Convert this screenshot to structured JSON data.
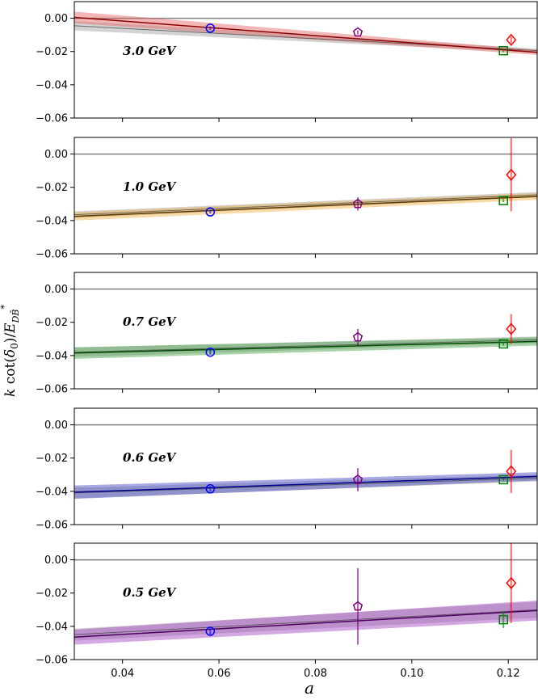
{
  "chart_data": {
    "type": "scatter",
    "xlabel": "a",
    "ylabel": "k cot(δ0)/E_DB̄*",
    "ylabel_parts": {
      "k": "k",
      "cot": " cot(",
      "delta": "δ",
      "delta_sub": "0",
      "close": ")/",
      "E": "E",
      "sub": "DB̄",
      "sup": "*"
    },
    "xlim": [
      0.03,
      0.126
    ],
    "ylim": [
      -0.06,
      0.01
    ],
    "x_ticks": [
      0.04,
      0.06,
      0.08,
      0.1,
      0.12
    ],
    "x_tick_labels": [
      "0.04",
      "0.06",
      "0.08",
      "0.10",
      "0.12"
    ],
    "y_ticks": [
      0.0,
      -0.02,
      -0.04,
      -0.06
    ],
    "y_tick_labels": [
      "0.00",
      "−0.02",
      "−0.04",
      "−0.06"
    ],
    "zero_line": 0.0,
    "colors": {
      "axis": "#000000",
      "zero_line": "#7f7f7f"
    },
    "marker_styles": [
      {
        "shape": "circle",
        "color": "#0000ff"
      },
      {
        "shape": "pentagon",
        "color": "#800080"
      },
      {
        "shape": "square",
        "color": "#008000"
      },
      {
        "shape": "diamond",
        "color": "#ff0000"
      }
    ],
    "panels": [
      {
        "label": "3.0 GeV",
        "band_color": "#e06060",
        "line_color": "#8b0000",
        "fit_line": [
          [
            0.03,
            0.0005
          ],
          [
            0.126,
            -0.0205
          ]
        ],
        "band_halfwidth": [
          0.0035,
          0.0015
        ],
        "alt_line": [
          [
            0.03,
            -0.0045
          ],
          [
            0.126,
            -0.0195
          ]
        ],
        "points": [
          {
            "x": 0.0582,
            "y": -0.006,
            "err": 0.001
          },
          {
            "x": 0.0888,
            "y": -0.0085,
            "err": 0.0012
          },
          {
            "x": 0.119,
            "y": -0.0195,
            "err": 0.001
          },
          {
            "x": 0.1206,
            "y": -0.013,
            "err": 0.002
          }
        ]
      },
      {
        "label": "1.0 GeV",
        "band_color": "#f0b040",
        "line_color": "#5a3a00",
        "fit_line": [
          [
            0.03,
            -0.0375
          ],
          [
            0.126,
            -0.0255
          ]
        ],
        "band_halfwidth": [
          0.0025,
          0.002
        ],
        "alt_line": [
          [
            0.03,
            -0.0365
          ],
          [
            0.126,
            -0.0245
          ]
        ],
        "points": [
          {
            "x": 0.0582,
            "y": -0.0348,
            "err": 0.001
          },
          {
            "x": 0.0888,
            "y": -0.03,
            "err": 0.004
          },
          {
            "x": 0.119,
            "y": -0.028,
            "err": 0.001
          },
          {
            "x": 0.1206,
            "y": -0.0125,
            "err": 0.022
          }
        ]
      },
      {
        "label": "0.7 GeV",
        "band_color": "#40a040",
        "line_color": "#004d00",
        "fit_line": [
          [
            0.03,
            -0.0385
          ],
          [
            0.126,
            -0.0315
          ]
        ],
        "band_halfwidth": [
          0.0035,
          0.0025
        ],
        "alt_line": [
          [
            0.03,
            -0.038
          ],
          [
            0.126,
            -0.0305
          ]
        ],
        "points": [
          {
            "x": 0.0582,
            "y": -0.038,
            "err": 0.0015
          },
          {
            "x": 0.0888,
            "y": -0.029,
            "err": 0.005
          },
          {
            "x": 0.119,
            "y": -0.033,
            "err": 0.001
          },
          {
            "x": 0.1206,
            "y": -0.024,
            "err": 0.009
          }
        ]
      },
      {
        "label": "0.6 GeV",
        "band_color": "#4040c0",
        "line_color": "#00008b",
        "fit_line": [
          [
            0.03,
            -0.0405
          ],
          [
            0.126,
            -0.031
          ]
        ],
        "band_halfwidth": [
          0.004,
          0.0025
        ],
        "alt_line": [
          [
            0.03,
            -0.041
          ],
          [
            0.126,
            -0.032
          ]
        ],
        "points": [
          {
            "x": 0.0582,
            "y": -0.0385,
            "err": 0.0015
          },
          {
            "x": 0.0888,
            "y": -0.033,
            "err": 0.007
          },
          {
            "x": 0.119,
            "y": -0.033,
            "err": 0.001
          },
          {
            "x": 0.1206,
            "y": -0.028,
            "err": 0.013
          }
        ]
      },
      {
        "label": "0.5 GeV",
        "band_color": "#a040c0",
        "line_color": "#4b0060",
        "fit_line": [
          [
            0.03,
            -0.0465
          ],
          [
            0.126,
            -0.0305
          ]
        ],
        "band_halfwidth": [
          0.0045,
          0.006
        ],
        "alt_line": [
          [
            0.03,
            -0.045
          ],
          [
            0.126,
            -0.03
          ]
        ],
        "points": [
          {
            "x": 0.0582,
            "y": -0.043,
            "err": 0.002
          },
          {
            "x": 0.0888,
            "y": -0.028,
            "err": 0.023
          },
          {
            "x": 0.119,
            "y": -0.036,
            "err": 0.005
          },
          {
            "x": 0.1206,
            "y": -0.014,
            "err": 0.024
          }
        ]
      }
    ]
  }
}
